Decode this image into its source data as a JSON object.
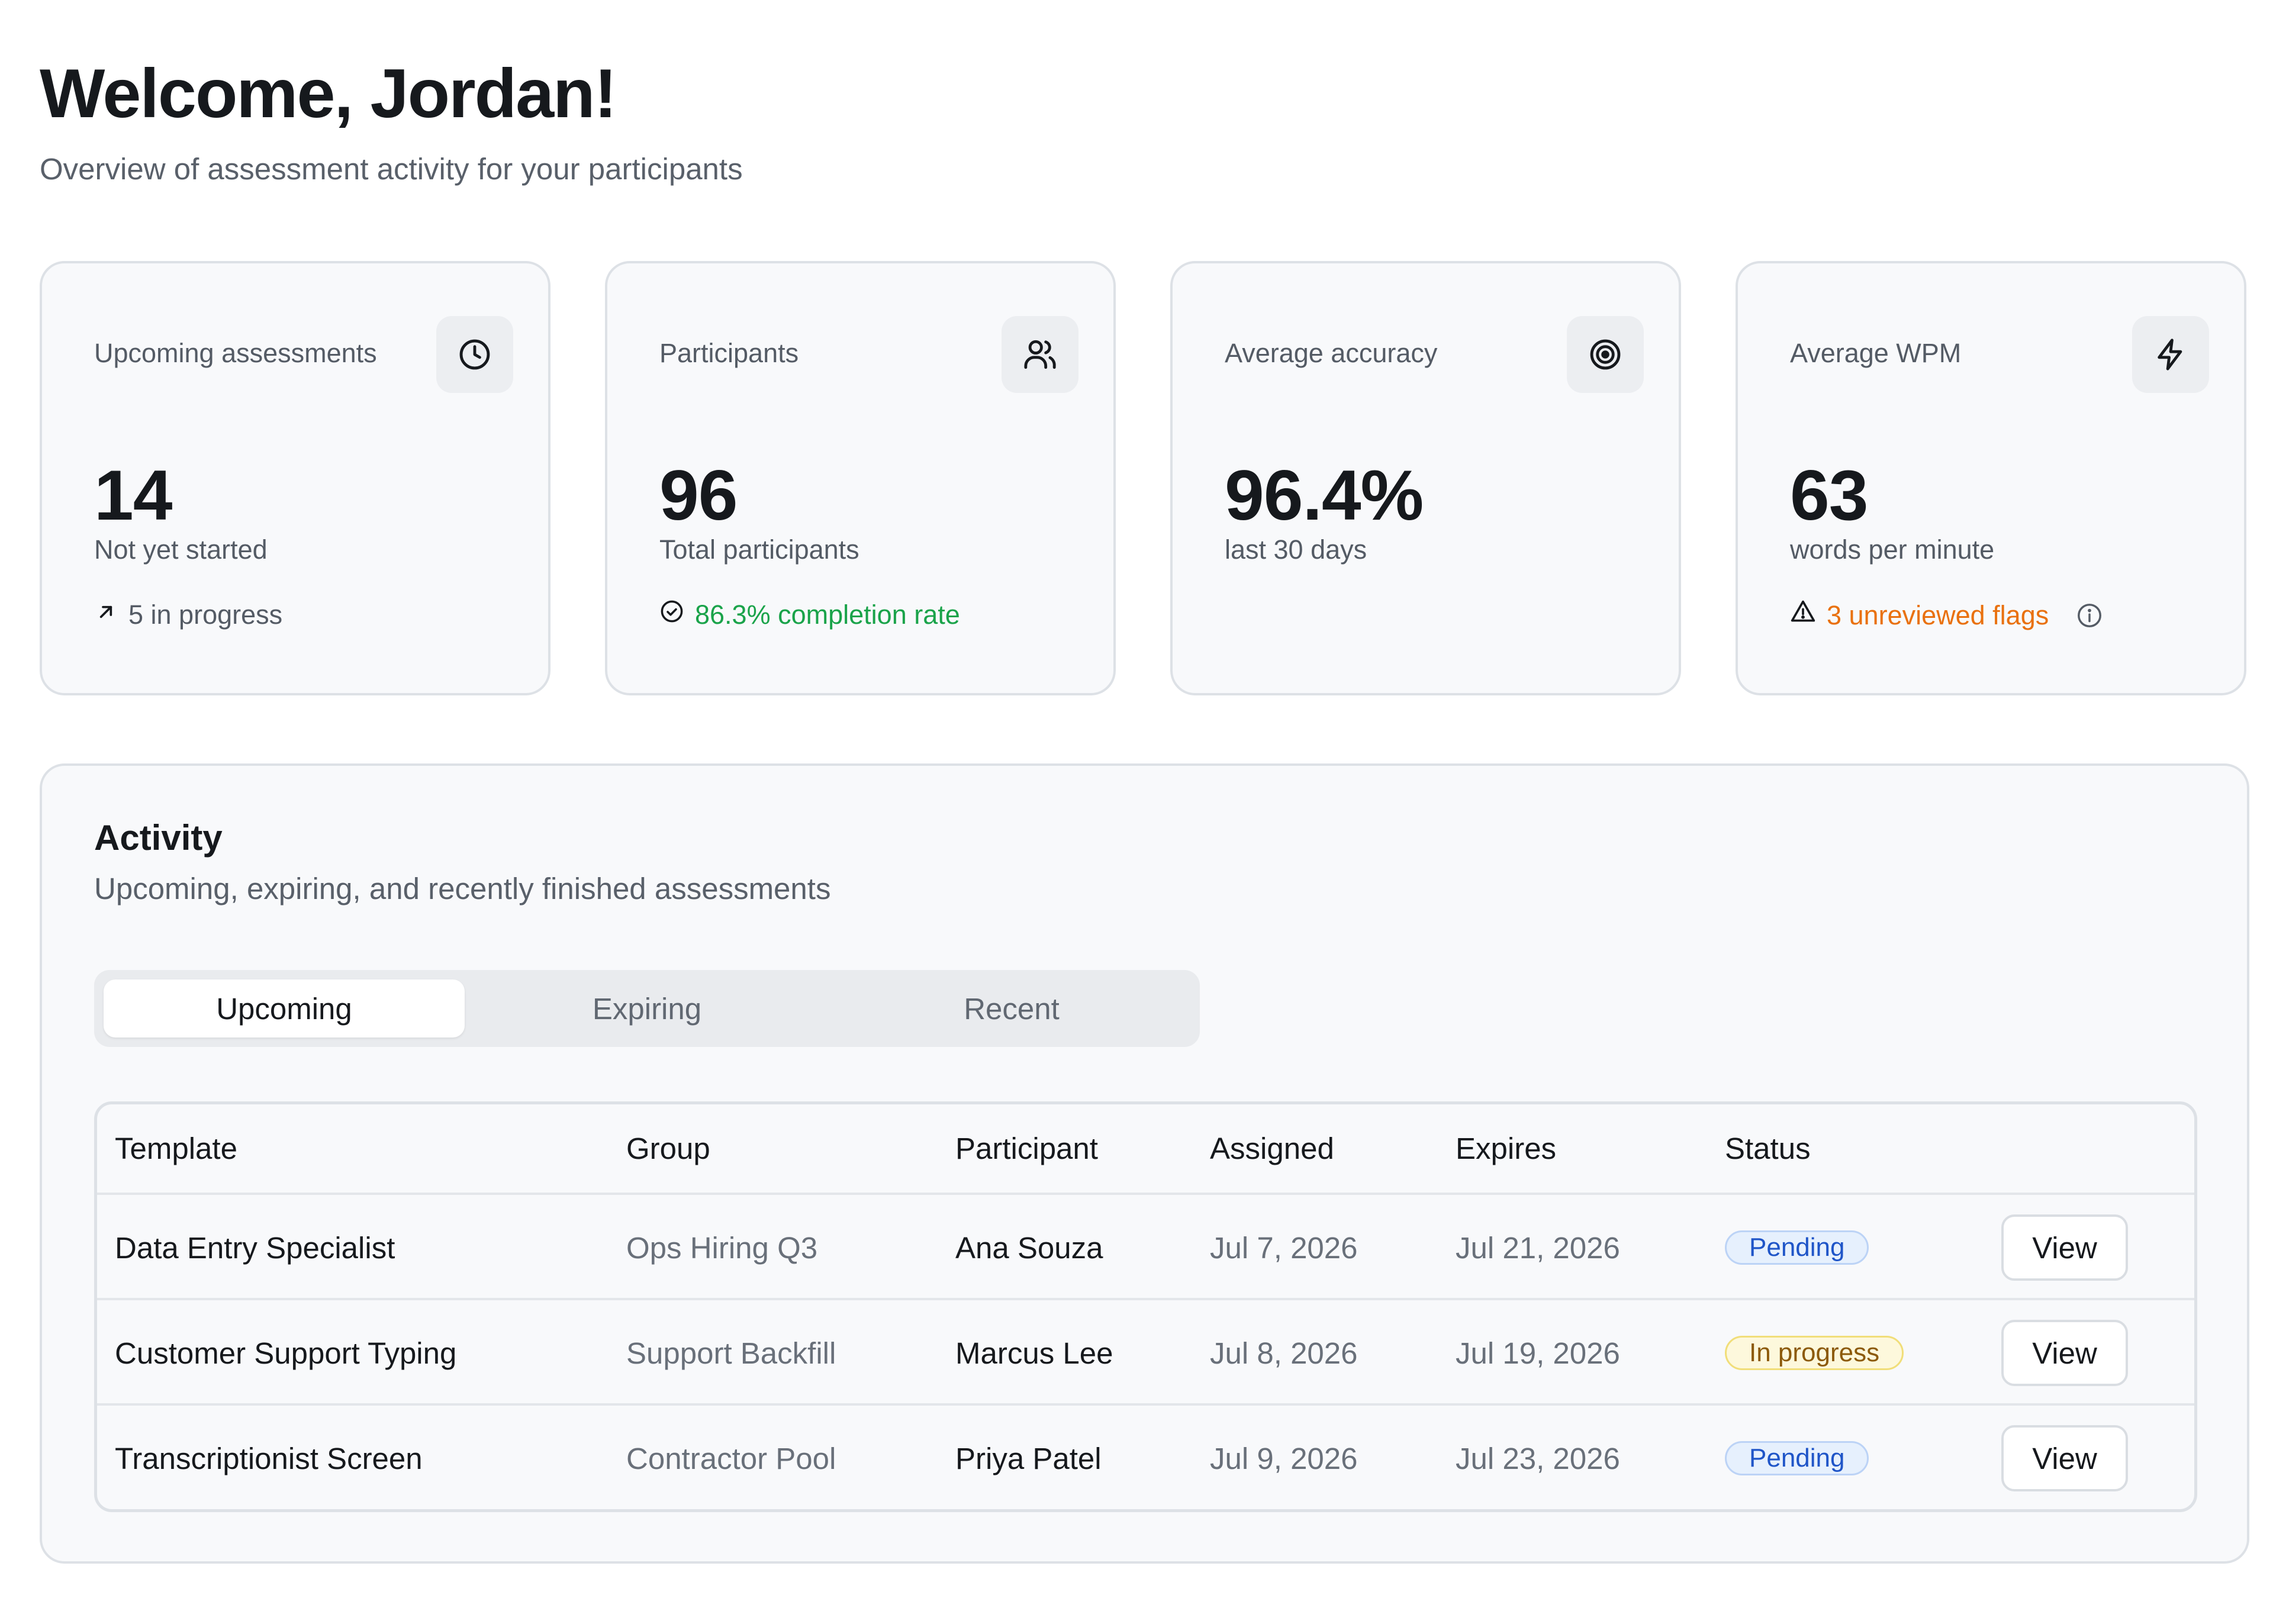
{
  "header": {
    "title": "Welcome, Jordan!",
    "subtitle": "Overview of assessment activity for your participants"
  },
  "stats": [
    {
      "label": "Upcoming assessments",
      "icon": "clock-icon",
      "value": "14",
      "caption": "Not yet started",
      "meta": "5 in progress",
      "meta_icon": "arrow-up-right-icon"
    },
    {
      "label": "Participants",
      "icon": "users-icon",
      "value": "96",
      "caption": "Total participants",
      "meta": "86.3% completion rate",
      "meta_icon": "check-circle-icon"
    },
    {
      "label": "Average accuracy",
      "icon": "target-icon",
      "value": "96.4%",
      "caption": "last 30 days"
    },
    {
      "label": "Average WPM",
      "icon": "lightning-icon",
      "value": "63",
      "caption": "words per minute",
      "meta": "3 unreviewed flags",
      "meta_icon": "warning-triangle-icon",
      "meta_extra_icon": "info-icon"
    }
  ],
  "activity": {
    "title": "Activity",
    "subtitle": "Upcoming, expiring, and recently finished assessments",
    "tabs": [
      "Upcoming",
      "Expiring",
      "Recent"
    ],
    "active_tab": "Upcoming",
    "columns": [
      "Template",
      "Group",
      "Participant",
      "Assigned",
      "Expires",
      "Status"
    ],
    "action_label": "View",
    "rows": [
      {
        "template": "Data Entry Specialist",
        "group": "Ops Hiring Q3",
        "participant": "Ana Souza",
        "assigned": "Jul 7, 2026",
        "expires": "Jul 21, 2026",
        "status": "Pending"
      },
      {
        "template": "Customer Support Typing",
        "group": "Support Backfill",
        "participant": "Marcus Lee",
        "assigned": "Jul 8, 2026",
        "expires": "Jul 19, 2026",
        "status": "In progress"
      },
      {
        "template": "Transcriptionist Screen",
        "group": "Contractor Pool",
        "participant": "Priya Patel",
        "assigned": "Jul 9, 2026",
        "expires": "Jul 23, 2026",
        "status": "Pending"
      }
    ]
  },
  "colors": {
    "text": "#16191d",
    "muted": "#59606a",
    "success": "#1aa34a",
    "warning": "#e9710f",
    "pending": "#1f55c8",
    "in_progress": "#8c5a0a"
  }
}
